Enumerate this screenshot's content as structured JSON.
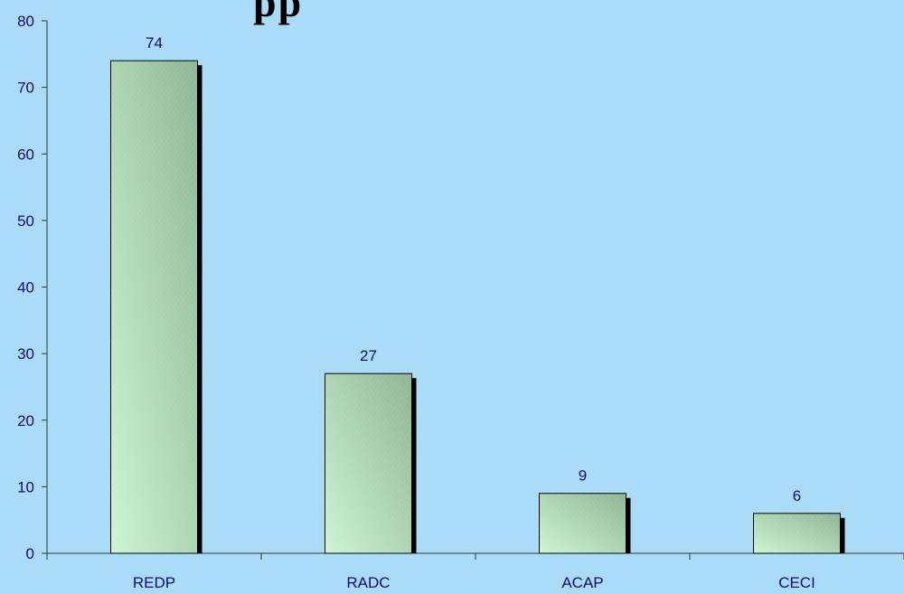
{
  "chart_data": {
    "type": "bar",
    "title": "pp",
    "categories": [
      "REDP",
      "RADC",
      "ACAP",
      "CECI"
    ],
    "values": [
      74,
      27,
      9,
      6
    ],
    "data_labels": [
      "74",
      "27",
      "9",
      "6"
    ],
    "xlabel": "",
    "ylabel": "",
    "ylim": [
      0,
      80
    ],
    "yticks": [
      0,
      10,
      20,
      30,
      40,
      50,
      60,
      70,
      80
    ],
    "grid": false,
    "legend": "none",
    "colors": {
      "background": "#aadcf8",
      "bar_light": "#ccf5d2",
      "bar_dark": "#8fb694",
      "bar_shadow": "#000000",
      "axis": "#333333",
      "label_text": "#0a0a7a"
    }
  }
}
